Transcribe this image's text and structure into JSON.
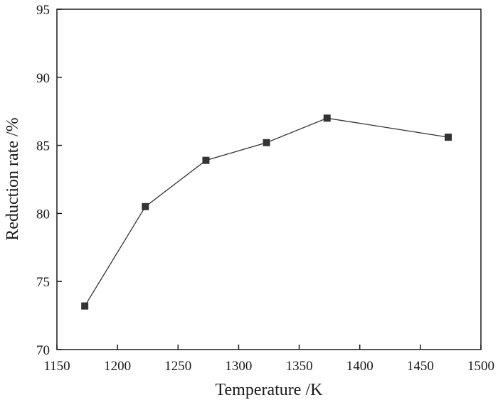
{
  "chart_data": {
    "type": "line",
    "title": "",
    "xlabel": "Temperature /K",
    "ylabel": "Reduction rate /%",
    "xlim": [
      1150,
      1500
    ],
    "ylim": [
      70,
      95
    ],
    "xticks": [
      1150,
      1200,
      1250,
      1300,
      1350,
      1400,
      1450,
      1500
    ],
    "yticks": [
      70,
      75,
      80,
      85,
      90,
      95
    ],
    "grid": false,
    "legend": "none",
    "series": [
      {
        "marker": "square",
        "color": "#333333",
        "x": [
          1173,
          1223,
          1273,
          1323,
          1373,
          1473
        ],
        "y": [
          73.2,
          80.5,
          83.9,
          85.2,
          87.0,
          85.6
        ]
      }
    ]
  }
}
